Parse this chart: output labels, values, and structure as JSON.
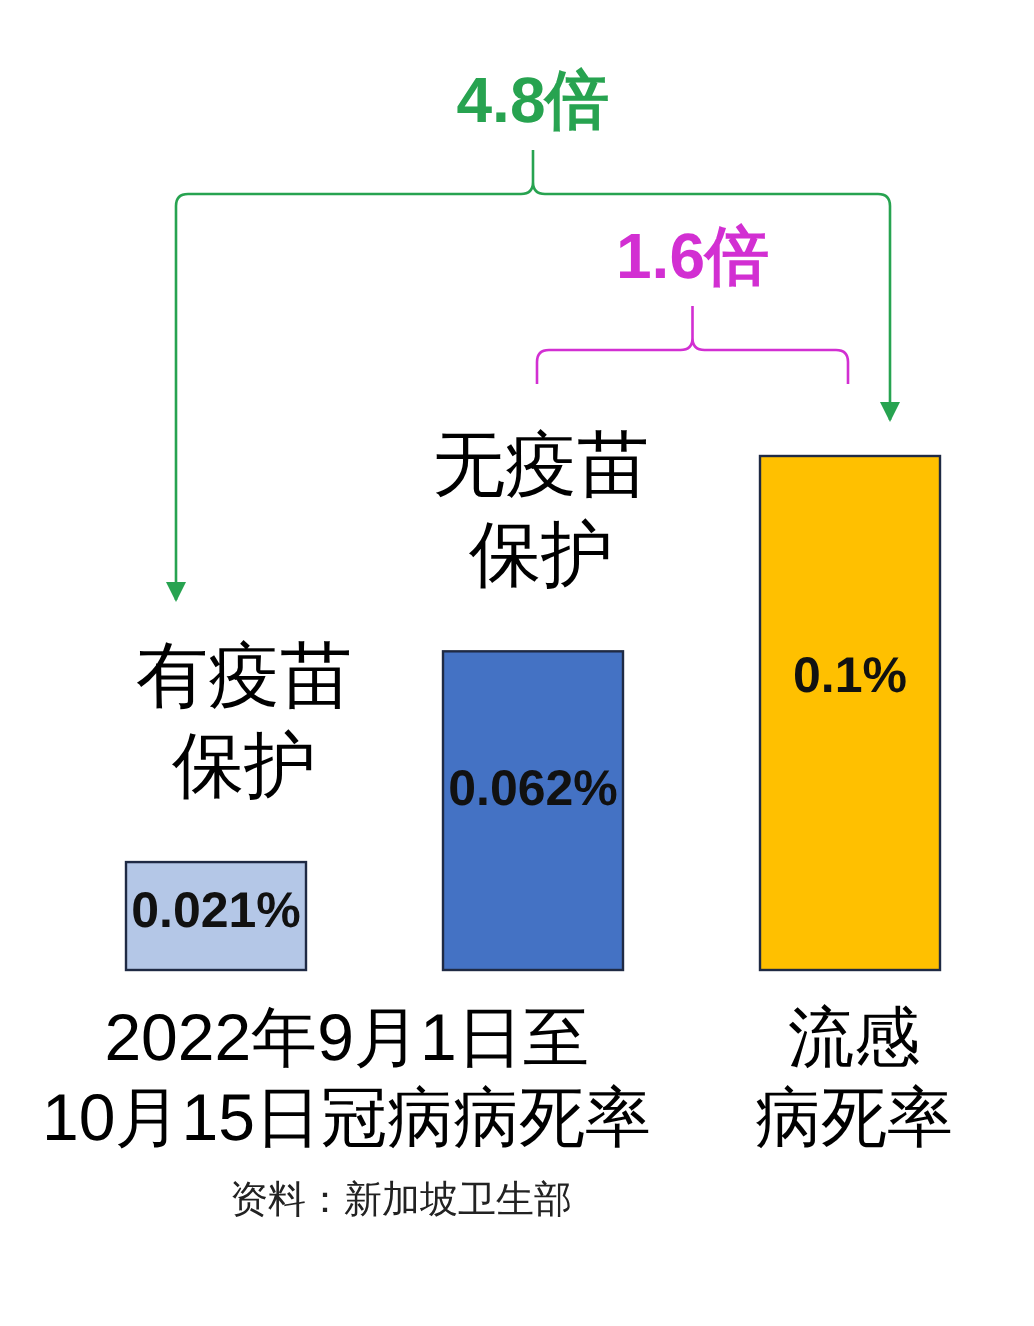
{
  "chart_data": {
    "type": "bar",
    "categories": [
      "有疫苗保护",
      "无疫苗保护",
      "流感病死率"
    ],
    "values": [
      0.021,
      0.062,
      0.1
    ],
    "colors": [
      "#b4c7e7",
      "#4472c4",
      "#ffc000"
    ],
    "value_labels": [
      "0.021%",
      "0.062%",
      "0.1%"
    ],
    "annotations": [
      "4.8倍",
      "1.6倍",
      "2022年9月1日至10月15日冠病病死率",
      "资料：新加坡卫生部"
    ]
  }
}
